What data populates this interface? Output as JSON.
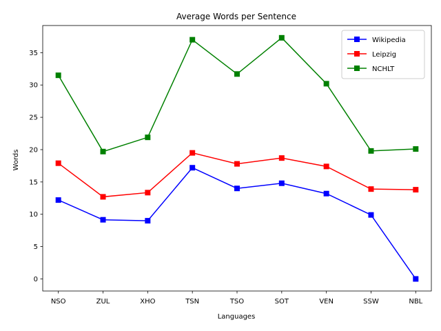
{
  "chart_data": {
    "type": "line",
    "title": "Average Words per Sentence",
    "xlabel": "Languages",
    "ylabel": "Words",
    "categories": [
      "NSO",
      "ZUL",
      "XHO",
      "TSN",
      "TSO",
      "SOT",
      "VEN",
      "SSW",
      "NBL"
    ],
    "ylim": [
      -1.87,
      39.2
    ],
    "yticks": [
      0,
      5,
      10,
      15,
      20,
      25,
      30,
      35
    ],
    "grid": false,
    "legend_position": "top-right",
    "series": [
      {
        "name": "Wikipedia",
        "color": "#0000ff",
        "marker": "square",
        "values": [
          12.2,
          9.15,
          9.0,
          17.2,
          14.0,
          14.8,
          13.2,
          9.9,
          0.0
        ]
      },
      {
        "name": "Leipzig",
        "color": "#ff0000",
        "marker": "square",
        "values": [
          17.9,
          12.7,
          13.35,
          19.5,
          17.8,
          18.7,
          17.4,
          13.9,
          13.8
        ]
      },
      {
        "name": "NCHLT",
        "color": "#008000",
        "marker": "square",
        "values": [
          31.5,
          19.7,
          21.9,
          37.0,
          31.7,
          37.3,
          30.2,
          19.8,
          20.1
        ]
      }
    ]
  }
}
